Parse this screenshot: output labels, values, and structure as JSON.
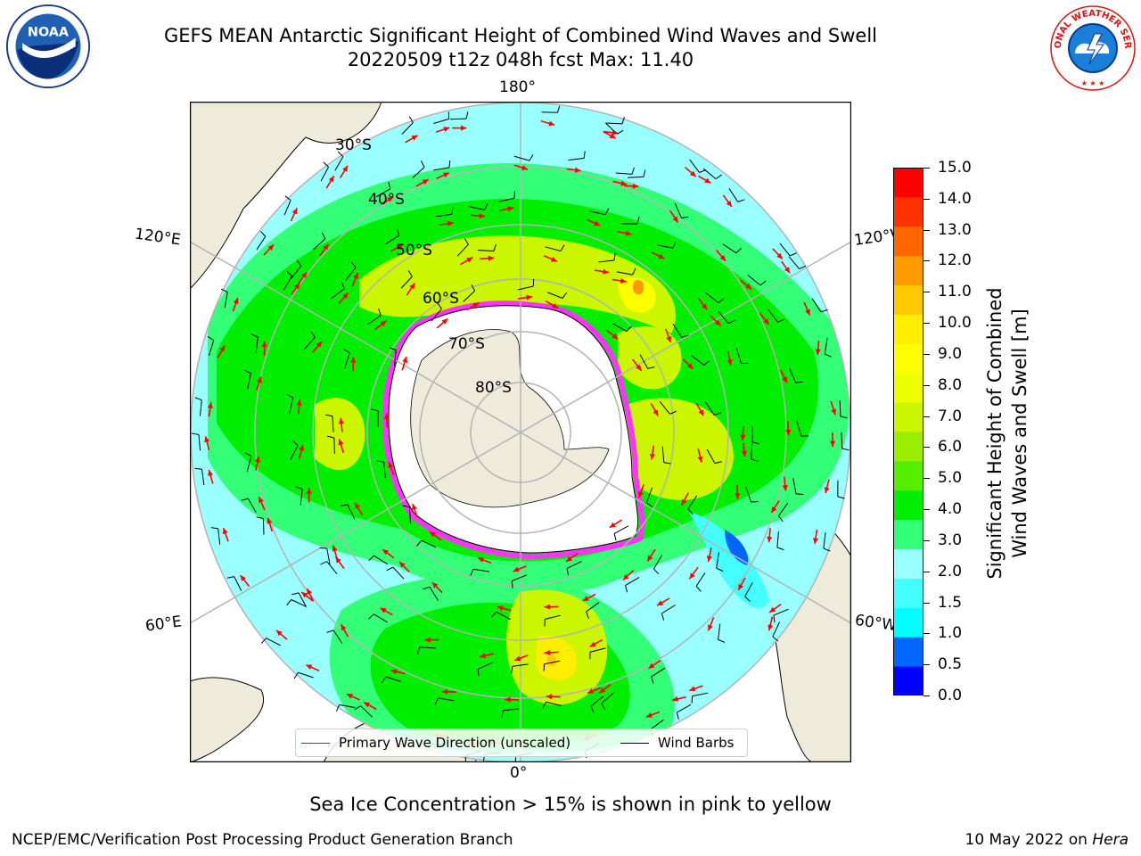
{
  "title": {
    "line1": "GEFS MEAN Antarctic Significant Height of Combined Wind Waves and Swell",
    "line2": "20220509 t12z 048h fcst   Max: 11.40"
  },
  "logos": {
    "left": {
      "name": "noaa-logo",
      "text": "NOAA"
    },
    "right": {
      "name": "nws-logo",
      "text": "NATIONAL WEATHER SERVICE"
    }
  },
  "map": {
    "projection": "south-polar-stereographic",
    "lon_labels": {
      "top": "180°",
      "bottom": "0°",
      "upper_left": "120°E",
      "upper_right": "120°W",
      "lower_left": "60°E",
      "lower_right": "60°W"
    },
    "lat_labels": [
      "30°S",
      "40°S",
      "50°S",
      "60°S",
      "70°S",
      "80°S"
    ],
    "colors": {
      "land": "#efebda",
      "ice_shelf": "#ffffff",
      "sea_ice_edge": "#ff33ff",
      "grid": "#b3b3b3",
      "wave_direction": "#ff0000",
      "wind_barb": "#000000"
    }
  },
  "legend": {
    "wave_direction": "Primary Wave Direction (unscaled)",
    "wind_barbs": "Wind Barbs"
  },
  "colorbar": {
    "label_line1": "Significant Height of Combined",
    "label_line2": "Wind Waves and Swell [m]",
    "ticks": [
      "15.0",
      "14.0",
      "13.0",
      "12.0",
      "11.0",
      "10.0",
      "9.0",
      "8.0",
      "7.0",
      "6.0",
      "5.0",
      "4.0",
      "3.0",
      "2.0",
      "1.5",
      "1.0",
      "0.5",
      "0.0"
    ],
    "colors_bottom_to_top": [
      "#0000ff",
      "#0066ff",
      "#00ffff",
      "#44ffff",
      "#99ffff",
      "#33ff77",
      "#00ee00",
      "#55ee00",
      "#99ee00",
      "#ccf500",
      "#eeff00",
      "#ffff00",
      "#ffee00",
      "#ffc800",
      "#ff9900",
      "#ff6600",
      "#ff3300",
      "#ff0000"
    ]
  },
  "footer": {
    "ice_note": "Sea Ice Concentration > 15% is shown in pink to yellow",
    "credit": "NCEP/EMC/Verification Post Processing Product Generation Branch",
    "date": "10 May 2022 on ",
    "machine": "Hera"
  }
}
